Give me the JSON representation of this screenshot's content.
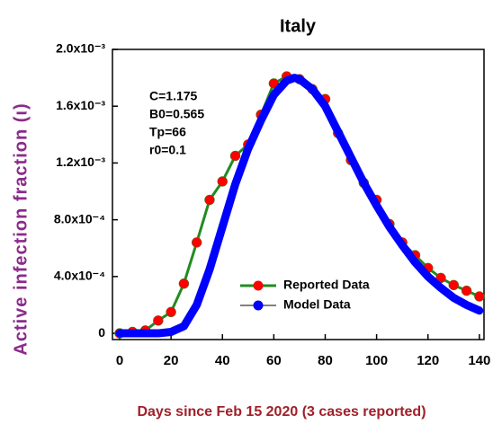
{
  "chart_data": {
    "type": "line",
    "title": "Italy",
    "x_label": "Days since Feb 15 2020 (3 cases reported)",
    "y_label": "Active infection fraction (ι)",
    "annotations": [
      "C=1.175",
      "B0=0.565",
      "Tp=66",
      "r0=0.1"
    ],
    "xlim": [
      -2.8,
      141.8
    ],
    "ylim": [
      -4.4e-05,
      0.002
    ],
    "xticks": [
      0,
      20,
      40,
      60,
      80,
      100,
      120,
      140
    ],
    "yticks": [
      0,
      {
        "value": 0.0004,
        "label": "4.0x10⁻⁴"
      },
      {
        "value": 0.0008,
        "label": "8.0x10⁻⁴"
      },
      {
        "value": 0.0012,
        "label": "1.2x10⁻³"
      },
      {
        "value": 0.0016,
        "label": "1.6x10⁻³"
      },
      {
        "value": 0.002,
        "label": "2.0x10⁻³"
      }
    ],
    "legend": "lower-center",
    "series": [
      {
        "name": "Reported Data",
        "color": "#228b22",
        "marker_color": "#ff0000",
        "x": [
          0,
          5,
          10,
          15,
          20,
          25,
          30,
          35,
          40,
          45,
          50,
          55,
          60,
          65,
          70,
          75,
          80,
          85,
          90,
          95,
          100,
          105,
          110,
          115,
          120,
          125,
          130,
          135,
          140
        ],
        "values": [
          0,
          1e-05,
          2e-05,
          9e-05,
          0.00015,
          0.00035,
          0.00064,
          0.00094,
          0.00107,
          0.00125,
          0.00133,
          0.00154,
          0.00176,
          0.00181,
          0.00179,
          0.00172,
          0.00165,
          0.00141,
          0.00122,
          0.00106,
          0.00094,
          0.00077,
          0.00064,
          0.00055,
          0.00046,
          0.00039,
          0.00034,
          0.0003,
          0.00026
        ]
      },
      {
        "name": "Model Data",
        "color": "#0000ff",
        "x": [
          0,
          5,
          10,
          15,
          20,
          25,
          30,
          35,
          40,
          45,
          50,
          55,
          60,
          65,
          68,
          70,
          75,
          80,
          85,
          90,
          95,
          100,
          105,
          110,
          115,
          120,
          125,
          130,
          135,
          140
        ],
        "values": [
          0,
          0,
          0,
          0,
          1e-05,
          5e-05,
          0.0002,
          0.00045,
          0.00075,
          0.00105,
          0.0013,
          0.0015,
          0.00168,
          0.00178,
          0.0018,
          0.00179,
          0.00172,
          0.0016,
          0.00142,
          0.00124,
          0.00106,
          0.0009,
          0.00075,
          0.00062,
          0.0005,
          0.0004,
          0.00032,
          0.00025,
          0.0002,
          0.00016
        ]
      }
    ]
  }
}
